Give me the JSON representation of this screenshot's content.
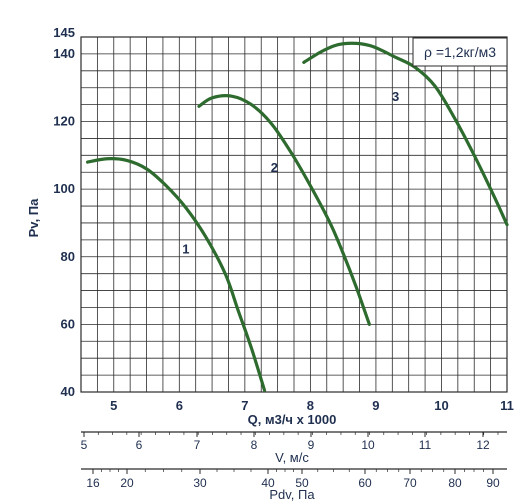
{
  "chart_data": {
    "type": "line",
    "ylabel": "Pv, Па",
    "xlabel": "Q, м3/ч х 1000",
    "xlim": [
      4.5,
      11.0
    ],
    "ylim": [
      40,
      145
    ],
    "yticks": [
      40,
      60,
      80,
      100,
      120,
      140,
      145
    ],
    "xticks": [
      5,
      6,
      7,
      8,
      9,
      10,
      11
    ],
    "annotation": "ρ =1,2кг/м3",
    "grid": true,
    "series": [
      {
        "name": "1",
        "x": [
          4.6,
          4.9,
          5.2,
          5.5,
          5.8,
          6.1,
          6.4,
          6.7,
          6.9,
          7.1,
          7.3
        ],
        "y": [
          108,
          109,
          108.5,
          106,
          101,
          94.5,
          86,
          75,
          64,
          53,
          40.5
        ]
      },
      {
        "name": "2",
        "x": [
          6.3,
          6.5,
          6.8,
          7.1,
          7.4,
          7.7,
          8.0,
          8.3,
          8.5,
          8.7,
          8.9
        ],
        "y": [
          124.5,
          127,
          127.5,
          125,
          119.5,
          111,
          101,
          90,
          81,
          71,
          60
        ]
      },
      {
        "name": "3",
        "x": [
          7.9,
          8.2,
          8.5,
          8.9,
          9.3,
          9.6,
          9.9,
          10.2,
          10.5,
          10.8,
          11.0
        ],
        "y": [
          137.5,
          141,
          143,
          142.5,
          139,
          136,
          130.5,
          121,
          110,
          98,
          89.5
        ]
      }
    ],
    "secondary_axes": [
      {
        "label": "V, м/с",
        "ticks": [
          "5",
          "6",
          "7",
          "8",
          "9",
          "10",
          "11",
          "12"
        ]
      },
      {
        "label": "Pdv, Па",
        "ticks": [
          "16",
          "20",
          "30",
          "40",
          "50",
          "60",
          "70",
          "80",
          "90"
        ]
      }
    ],
    "colors": {
      "curve": "#2e6b2e",
      "grid": "#2b2b2b",
      "text": "#1f2f4f"
    }
  }
}
